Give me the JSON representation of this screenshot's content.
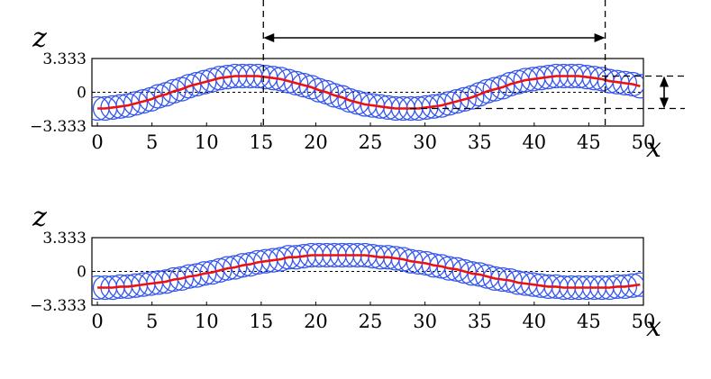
{
  "chart_data": [
    {
      "type": "scatter",
      "xlabel": "x",
      "ylabel": "z",
      "xlim": [
        -0.5,
        50
      ],
      "ylim": [
        -3.333,
        3.333
      ],
      "xticks": [
        "0",
        "5",
        "10",
        "15",
        "20",
        "25",
        "30",
        "35",
        "40",
        "45",
        "50"
      ],
      "yticks": [
        "−3.333",
        "0",
        "3.333"
      ],
      "reference_line_y": 0,
      "series": [
        {
          "marker": "circle",
          "color": "#3355ee",
          "x": [
            0.0,
            0.7,
            1.4,
            2.1,
            2.8,
            3.5,
            4.2,
            4.9,
            5.6,
            6.3,
            7.0,
            7.7,
            8.4,
            9.1,
            9.8,
            10.5,
            11.2,
            11.9,
            12.6,
            13.3,
            14.0,
            14.7,
            15.4,
            16.1,
            16.8,
            17.5,
            18.2,
            18.9,
            19.6,
            20.3,
            21.0,
            21.7,
            22.4,
            23.1,
            23.8,
            24.5,
            25.2,
            25.9,
            26.6,
            27.3,
            28.0,
            28.7,
            29.4,
            30.1,
            30.8,
            31.5,
            32.2,
            32.9,
            33.6,
            34.3,
            35.0,
            35.7,
            36.4,
            37.1,
            37.8,
            38.5,
            39.2,
            39.9,
            40.6,
            41.3,
            42.0,
            42.7,
            43.4,
            44.1,
            44.8,
            45.5,
            46.2,
            46.9,
            47.6,
            48.3,
            49.0,
            49.7
          ],
          "y": [
            -1.6,
            -1.6,
            -1.5,
            -1.4,
            -1.3,
            -1.1,
            -0.9,
            -0.7,
            -0.4,
            -0.2,
            0.1,
            0.3,
            0.6,
            0.8,
            1.0,
            1.2,
            1.4,
            1.5,
            1.6,
            1.6,
            1.6,
            1.6,
            1.5,
            1.4,
            1.3,
            1.1,
            0.9,
            0.7,
            0.5,
            0.2,
            0.0,
            -0.3,
            -0.5,
            -0.8,
            -1.0,
            -1.2,
            -1.3,
            -1.4,
            -1.5,
            -1.6,
            -1.6,
            -1.6,
            -1.6,
            -1.5,
            -1.4,
            -1.3,
            -1.1,
            -0.9,
            -0.7,
            -0.5,
            -0.2,
            0.1,
            0.3,
            0.5,
            0.8,
            1.0,
            1.2,
            1.3,
            1.4,
            1.5,
            1.6,
            1.6,
            1.6,
            1.6,
            1.5,
            1.4,
            1.3,
            1.1,
            1.0,
            0.9,
            0.8,
            0.6
          ]
        },
        {
          "marker": "line",
          "color": "#ee1111",
          "x": [
            0.0,
            0.7,
            1.4,
            2.1,
            2.8,
            3.5,
            4.2,
            4.9,
            5.6,
            6.3,
            7.0,
            7.7,
            8.4,
            9.1,
            9.8,
            10.5,
            11.2,
            11.9,
            12.6,
            13.3,
            14.0,
            14.7,
            15.4,
            16.1,
            16.8,
            17.5,
            18.2,
            18.9,
            19.6,
            20.3,
            21.0,
            21.7,
            22.4,
            23.1,
            23.8,
            24.5,
            25.2,
            25.9,
            26.6,
            27.3,
            28.0,
            28.7,
            29.4,
            30.1,
            30.8,
            31.5,
            32.2,
            32.9,
            33.6,
            34.3,
            35.0,
            35.7,
            36.4,
            37.1,
            37.8,
            38.5,
            39.2,
            39.9,
            40.6,
            41.3,
            42.0,
            42.7,
            43.4,
            44.1,
            44.8,
            45.5,
            46.2,
            46.9,
            47.6,
            48.3,
            49.0,
            49.7
          ],
          "y": [
            -1.6,
            -1.6,
            -1.5,
            -1.4,
            -1.3,
            -1.1,
            -0.9,
            -0.7,
            -0.4,
            -0.2,
            0.1,
            0.3,
            0.6,
            0.8,
            1.0,
            1.2,
            1.4,
            1.5,
            1.6,
            1.6,
            1.6,
            1.6,
            1.5,
            1.4,
            1.3,
            1.1,
            0.9,
            0.7,
            0.5,
            0.2,
            0.0,
            -0.3,
            -0.5,
            -0.8,
            -1.0,
            -1.2,
            -1.3,
            -1.4,
            -1.5,
            -1.6,
            -1.6,
            -1.6,
            -1.6,
            -1.5,
            -1.4,
            -1.3,
            -1.1,
            -0.9,
            -0.7,
            -0.5,
            -0.2,
            0.1,
            0.3,
            0.5,
            0.8,
            1.0,
            1.2,
            1.3,
            1.4,
            1.5,
            1.6,
            1.6,
            1.6,
            1.6,
            1.5,
            1.4,
            1.3,
            1.1,
            1.0,
            0.9,
            0.8,
            0.6
          ]
        }
      ],
      "annotations": [
        {
          "type": "double-arrow-horizontal",
          "x_from": 15.2,
          "x_to": 46.5,
          "meaning": "wavelength"
        },
        {
          "type": "double-arrow-vertical",
          "y_from": -1.6,
          "y_to": 1.6,
          "meaning": "amplitude"
        }
      ]
    },
    {
      "type": "scatter",
      "xlabel": "x",
      "ylabel": "z",
      "xlim": [
        -0.5,
        50
      ],
      "ylim": [
        -3.333,
        3.333
      ],
      "xticks": [
        "0",
        "5",
        "10",
        "15",
        "20",
        "25",
        "30",
        "35",
        "40",
        "45",
        "50"
      ],
      "yticks": [
        "−3.333",
        "0",
        "3.333"
      ],
      "reference_line_y": 0,
      "series": [
        {
          "marker": "circle",
          "color": "#3355ee",
          "x": [
            0.0,
            0.7,
            1.4,
            2.1,
            2.8,
            3.5,
            4.2,
            4.9,
            5.6,
            6.3,
            7.0,
            7.7,
            8.4,
            9.1,
            9.8,
            10.5,
            11.2,
            11.9,
            12.6,
            13.3,
            14.0,
            14.7,
            15.4,
            16.1,
            16.8,
            17.5,
            18.2,
            18.9,
            19.6,
            20.3,
            21.0,
            21.7,
            22.4,
            23.1,
            23.8,
            24.5,
            25.2,
            25.9,
            26.6,
            27.3,
            28.0,
            28.7,
            29.4,
            30.1,
            30.8,
            31.5,
            32.2,
            32.9,
            33.6,
            34.3,
            35.0,
            35.7,
            36.4,
            37.1,
            37.8,
            38.5,
            39.2,
            39.9,
            40.6,
            41.3,
            42.0,
            42.7,
            43.4,
            44.1,
            44.8,
            45.5,
            46.2,
            46.9,
            47.6,
            48.3,
            49.0,
            49.7
          ],
          "y": [
            -1.6,
            -1.6,
            -1.6,
            -1.5,
            -1.5,
            -1.4,
            -1.3,
            -1.2,
            -1.1,
            -1.0,
            -0.8,
            -0.7,
            -0.5,
            -0.4,
            -0.2,
            -0.1,
            0.1,
            0.3,
            0.4,
            0.6,
            0.7,
            0.9,
            1.0,
            1.1,
            1.2,
            1.4,
            1.4,
            1.5,
            1.6,
            1.6,
            1.6,
            1.6,
            1.6,
            1.6,
            1.6,
            1.6,
            1.5,
            1.4,
            1.4,
            1.3,
            1.2,
            1.0,
            0.9,
            0.8,
            0.6,
            0.5,
            0.3,
            0.2,
            0.0,
            -0.2,
            -0.3,
            -0.5,
            -0.7,
            -0.8,
            -0.9,
            -1.1,
            -1.2,
            -1.3,
            -1.4,
            -1.5,
            -1.5,
            -1.6,
            -1.6,
            -1.6,
            -1.6,
            -1.6,
            -1.6,
            -1.6,
            -1.5,
            -1.5,
            -1.4,
            -1.3
          ]
        },
        {
          "marker": "line",
          "color": "#ee1111",
          "x": [
            0.0,
            0.7,
            1.4,
            2.1,
            2.8,
            3.5,
            4.2,
            4.9,
            5.6,
            6.3,
            7.0,
            7.7,
            8.4,
            9.1,
            9.8,
            10.5,
            11.2,
            11.9,
            12.6,
            13.3,
            14.0,
            14.7,
            15.4,
            16.1,
            16.8,
            17.5,
            18.2,
            18.9,
            19.6,
            20.3,
            21.0,
            21.7,
            22.4,
            23.1,
            23.8,
            24.5,
            25.2,
            25.9,
            26.6,
            27.3,
            28.0,
            28.7,
            29.4,
            30.1,
            30.8,
            31.5,
            32.2,
            32.9,
            33.6,
            34.3,
            35.0,
            35.7,
            36.4,
            37.1,
            37.8,
            38.5,
            39.2,
            39.9,
            40.6,
            41.3,
            42.0,
            42.7,
            43.4,
            44.1,
            44.8,
            45.5,
            46.2,
            46.9,
            47.6,
            48.3,
            49.0,
            49.7
          ],
          "y": [
            -1.6,
            -1.6,
            -1.6,
            -1.5,
            -1.5,
            -1.4,
            -1.3,
            -1.2,
            -1.1,
            -1.0,
            -0.8,
            -0.7,
            -0.5,
            -0.4,
            -0.2,
            -0.1,
            0.1,
            0.3,
            0.4,
            0.6,
            0.7,
            0.9,
            1.0,
            1.1,
            1.2,
            1.4,
            1.4,
            1.5,
            1.6,
            1.6,
            1.6,
            1.6,
            1.6,
            1.6,
            1.6,
            1.6,
            1.5,
            1.4,
            1.4,
            1.3,
            1.2,
            1.0,
            0.9,
            0.8,
            0.6,
            0.5,
            0.3,
            0.2,
            0.0,
            -0.2,
            -0.3,
            -0.5,
            -0.7,
            -0.8,
            -0.9,
            -1.1,
            -1.2,
            -1.3,
            -1.4,
            -1.5,
            -1.5,
            -1.6,
            -1.6,
            -1.6,
            -1.6,
            -1.6,
            -1.6,
            -1.6,
            -1.5,
            -1.5,
            -1.4,
            -1.3
          ]
        }
      ]
    }
  ]
}
